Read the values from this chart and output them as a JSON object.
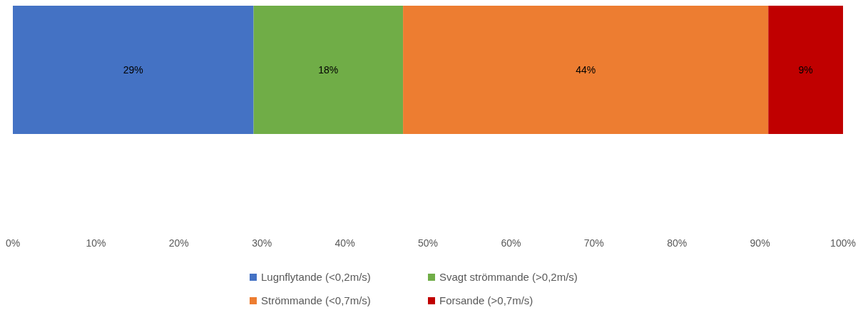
{
  "chart_data": {
    "type": "bar",
    "orientation": "horizontal",
    "stacked": true,
    "categories": [
      null
    ],
    "series": [
      {
        "name": "Lugnflytande (<0,2m/s)",
        "color": "#4472c4",
        "values": [
          29
        ],
        "value_labels": [
          "29%"
        ]
      },
      {
        "name": "Svagt strömmande (>0,2m/s)",
        "color": "#70ad47",
        "values": [
          18
        ],
        "value_labels": [
          "18%"
        ]
      },
      {
        "name": "Strömmande (<0,7m/s)",
        "color": "#ed7d31",
        "values": [
          44
        ],
        "value_labels": [
          "44%"
        ]
      },
      {
        "name": "Forsande (>0,7m/s)",
        "color": "#c00000",
        "values": [
          9
        ],
        "value_labels": [
          "9%"
        ]
      }
    ],
    "xlim": [
      0,
      100
    ],
    "xticks": [
      {
        "value": 0,
        "label": "0%"
      },
      {
        "value": 10,
        "label": "10%"
      },
      {
        "value": 20,
        "label": "20%"
      },
      {
        "value": 30,
        "label": "30%"
      },
      {
        "value": 40,
        "label": "40%"
      },
      {
        "value": 50,
        "label": "50%"
      },
      {
        "value": 60,
        "label": "60%"
      },
      {
        "value": 70,
        "label": "70%"
      },
      {
        "value": 80,
        "label": "80%"
      },
      {
        "value": 90,
        "label": "90%"
      },
      {
        "value": 100,
        "label": "100%"
      }
    ],
    "grid": false,
    "legend": "bottom"
  }
}
